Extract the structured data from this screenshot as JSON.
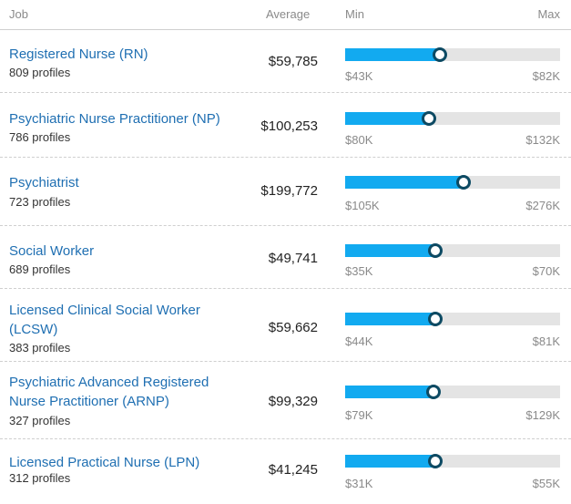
{
  "header": {
    "job": "Job",
    "average": "Average",
    "min": "Min",
    "max": "Max"
  },
  "rows": [
    {
      "title": "Registered Nurse (RN)",
      "profiles": "809 profiles",
      "average": "$59,785",
      "min": "$43K",
      "max": "$82K",
      "position": 0.44
    },
    {
      "title": "Psychiatric Nurse Practitioner (NP)",
      "profiles": "786 profiles",
      "average": "$100,253",
      "min": "$80K",
      "max": "$132K",
      "position": 0.39
    },
    {
      "title": "Psychiatrist",
      "profiles": "723 profiles",
      "average": "$199,772",
      "min": "$105K",
      "max": "$276K",
      "position": 0.55
    },
    {
      "title": "Social Worker",
      "profiles": "689 profiles",
      "average": "$49,741",
      "min": "$35K",
      "max": "$70K",
      "position": 0.42
    },
    {
      "title": "Licensed Clinical Social Worker (LCSW)",
      "profiles": "383 profiles",
      "average": "$59,662",
      "min": "$44K",
      "max": "$81K",
      "position": 0.42
    },
    {
      "title": "Psychiatric Advanced Registered Nurse Practitioner (ARNP)",
      "profiles": "327 profiles",
      "average": "$99,329",
      "min": "$79K",
      "max": "$129K",
      "position": 0.41
    },
    {
      "title": "Licensed Practical Nurse (LPN)",
      "profiles": "312 profiles",
      "average": "$41,245",
      "min": "$31K",
      "max": "$55K",
      "position": 0.42
    }
  ],
  "colors": {
    "bar_fill": "#12aaf0",
    "bar_track": "#e4e4e4",
    "dot_border": "#0d4a63",
    "link": "#1f6fb2"
  }
}
